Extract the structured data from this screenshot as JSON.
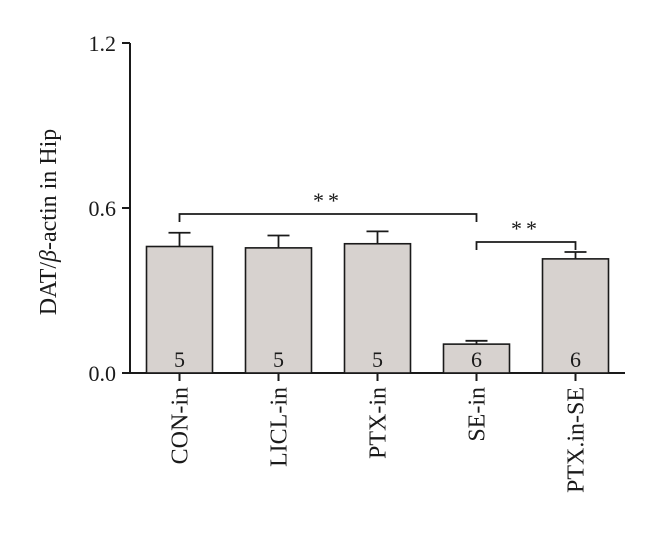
{
  "chart_data": {
    "type": "bar",
    "title": "",
    "xlabel": "",
    "ylabel": {
      "prefix": "DAT/",
      "greek": "β",
      "suffix": "-actin in Hip"
    },
    "ylim": [
      0,
      1.2
    ],
    "yticks": [
      "0.0",
      "0.6",
      "1.2"
    ],
    "categories": [
      "CON-in",
      "LICL-in",
      "PTX-in",
      "SE-in",
      "PTX.in-SE"
    ],
    "values": [
      0.46,
      0.455,
      0.47,
      0.105,
      0.415
    ],
    "errors": [
      0.05,
      0.045,
      0.045,
      0.012,
      0.025
    ],
    "n_labels": [
      "5",
      "5",
      "5",
      "6",
      "6"
    ],
    "significance": [
      {
        "from": 0,
        "to": 3,
        "label": "**"
      },
      {
        "from": 3,
        "to": 4,
        "label": "**"
      }
    ],
    "bar_color": "#d7d2cf",
    "edge_color": "#1a1a1a",
    "grid": false,
    "legend": "none"
  }
}
